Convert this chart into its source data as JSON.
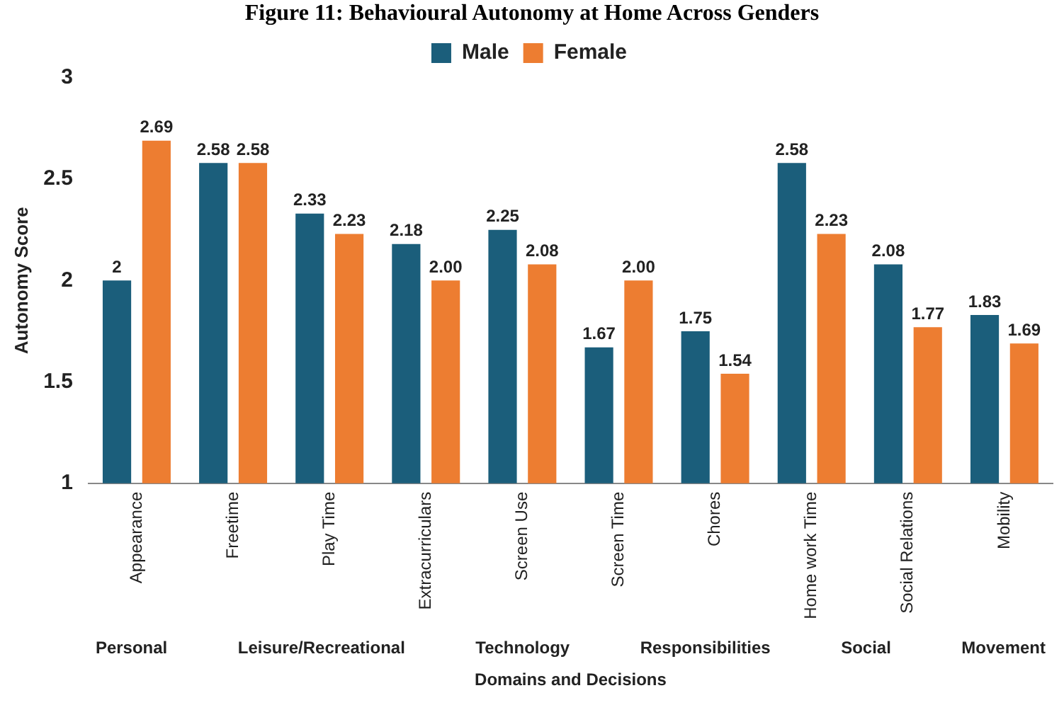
{
  "chart_data": {
    "type": "bar",
    "title": "Figure 11: Behavioural Autonomy at Home Across Genders",
    "xlabel": "Domains and Decisions",
    "ylabel": "Autonomy Score",
    "categories": [
      "Appearance",
      "Freetime",
      "Play Time",
      "Extracurriculars",
      "Screen Use",
      "Screen Time",
      "Chores",
      "Home work Time",
      "Social Relations",
      "Mobility"
    ],
    "series": [
      {
        "name": "Male",
        "color": "#1b5e7b",
        "values": [
          2,
          2.58,
          2.33,
          2.18,
          2.25,
          1.67,
          1.75,
          2.58,
          2.08,
          1.83
        ],
        "value_labels": [
          "2",
          "2.58",
          "2.33",
          "2.18",
          "2.25",
          "1.67",
          "1.75",
          "2.58",
          "2.08",
          "1.83"
        ]
      },
      {
        "name": "Female",
        "color": "#ed7d31",
        "values": [
          2.69,
          2.58,
          2.23,
          2,
          2.08,
          2,
          1.54,
          2.23,
          1.77,
          1.69
        ],
        "value_labels": [
          "2.69",
          "2.58",
          "2.23",
          "2.00",
          "2.08",
          "2.00",
          "1.54",
          "2.23",
          "1.77",
          "1.69"
        ]
      }
    ],
    "annotations": [
      "Personal",
      "Leisure/Recreational",
      "Technology",
      "Responsibilities",
      "Social",
      "Movement"
    ],
    "ylim": [
      1,
      3
    ],
    "yticks": [
      1,
      1.5,
      2,
      2.5,
      3
    ],
    "grid": false,
    "legend": "top"
  }
}
